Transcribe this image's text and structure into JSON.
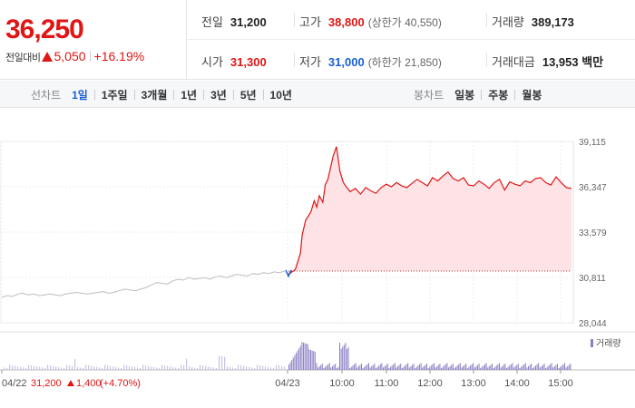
{
  "quote": {
    "price": "36,250",
    "change_label": "전일대비",
    "change": "5,050",
    "change_pct": "+16.19%",
    "stats_row1": [
      {
        "key": "전일",
        "value": "31,200",
        "color": "",
        "sub": ""
      },
      {
        "key": "고가",
        "value": "38,800",
        "color": "red",
        "sub": "(상한가 40,550)"
      },
      {
        "key": "거래량",
        "value": "389,173",
        "color": "",
        "sub": ""
      }
    ],
    "stats_row2": [
      {
        "key": "시가",
        "value": "31,300",
        "color": "red",
        "sub": ""
      },
      {
        "key": "저가",
        "value": "31,000",
        "color": "blue",
        "sub": "(하한가 21,850)"
      },
      {
        "key": "거래대금",
        "value": "13,953 백만",
        "color": "",
        "sub": ""
      }
    ]
  },
  "tabs": {
    "line_title": "선차트",
    "line_tabs": [
      "1일",
      "1주일",
      "3개월",
      "1년",
      "3년",
      "5년",
      "10년"
    ],
    "active_line_tab": "1일",
    "candle_title": "봉차트",
    "candle_tabs": [
      "일봉",
      "주봉",
      "월봉"
    ]
  },
  "chart_data": {
    "type": "line",
    "y_ticks": [
      "39,115",
      "36,347",
      "33,579",
      "30,811",
      "28,044"
    ],
    "ylim": [
      28044,
      39115
    ],
    "x_ticks": [
      "04/22",
      "04/23",
      "10:00",
      "11:00",
      "12:00",
      "13:00",
      "14:00",
      "15:00"
    ],
    "prev_close": 31200,
    "prev_day_series": {
      "name": "04/22",
      "values": [
        29600,
        29700,
        29650,
        29800,
        29850,
        29750,
        29800,
        29700,
        29750,
        29800,
        29750,
        29700,
        29800,
        29850,
        29900,
        29850,
        29800,
        29850,
        29900,
        29950,
        29850,
        29900,
        30000,
        30100,
        30050,
        30000,
        30100,
        30200,
        30350,
        30500,
        30450,
        30400,
        30600,
        30700,
        30650,
        30800,
        30700,
        30750,
        30800,
        30700,
        30850,
        30900,
        30800,
        30900,
        31000,
        30950,
        30900,
        31050,
        31000,
        31100,
        31050,
        31150,
        31100,
        31200
      ]
    },
    "today_series": {
      "name": "04/23",
      "x_minutes": [
        0,
        8,
        14,
        16,
        20,
        26,
        30,
        33,
        36,
        40,
        43,
        46,
        49,
        52,
        56,
        60,
        64,
        68,
        72,
        78,
        84,
        90,
        96,
        102,
        108,
        114,
        120,
        126,
        132,
        138,
        144,
        150,
        156,
        162,
        168,
        174,
        180,
        186,
        192,
        198,
        204,
        210,
        216,
        222,
        228,
        234,
        240,
        246,
        252,
        258,
        264,
        270,
        276,
        282,
        288,
        294,
        300,
        306,
        312,
        318,
        324,
        330
      ],
      "values": [
        31000,
        31300,
        32300,
        33400,
        34300,
        34800,
        35500,
        35100,
        35800,
        35400,
        36500,
        36800,
        37500,
        38200,
        38800,
        37300,
        36600,
        36300,
        36050,
        36250,
        35900,
        36300,
        36100,
        35950,
        36300,
        36500,
        36350,
        36600,
        36400,
        36300,
        36550,
        36800,
        36600,
        36400,
        36900,
        36700,
        37000,
        37250,
        36850,
        36700,
        36900,
        36450,
        36400,
        36700,
        36500,
        36250,
        36600,
        36800,
        36150,
        36650,
        36500,
        36400,
        36700,
        36600,
        36850,
        36900,
        36600,
        36450,
        36950,
        36600,
        36300,
        36250
      ]
    },
    "volume_legend": "거래량",
    "footer": {
      "date": "04/22",
      "close": "31,200",
      "change": "1,400",
      "change_pct": "(+4.70%)"
    },
    "colors": {
      "up": "#e01616",
      "down": "#1a5fd6",
      "prev": "#bdbdbd",
      "fill": "#fde3e6",
      "volume": "#8c7fc4"
    }
  }
}
